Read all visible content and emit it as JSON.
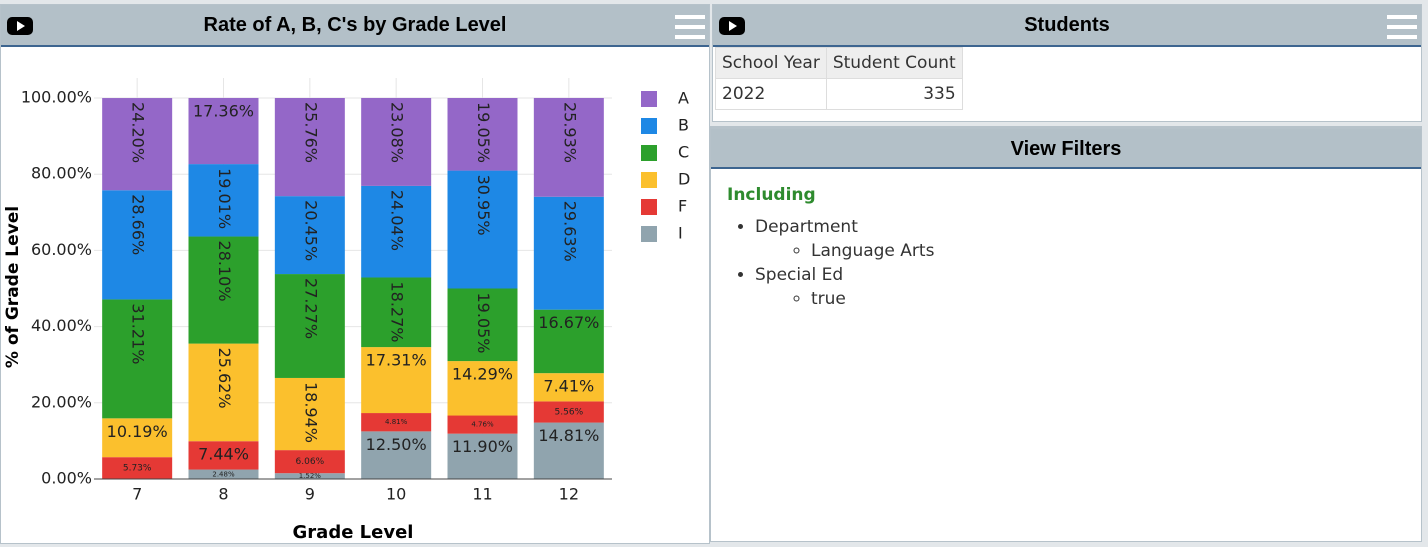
{
  "chart_data": {
    "type": "stacked-bar",
    "title": "Rate of A, B, C's by Grade Level",
    "x_label": "Grade Level",
    "y_label": "% of Grade Level",
    "categories": [
      "7",
      "8",
      "9",
      "10",
      "11",
      "12"
    ],
    "series": [
      {
        "name": "A",
        "color": "#9467c8",
        "values": [
          24.2,
          17.36,
          25.76,
          23.08,
          19.05,
          25.93
        ],
        "value_labels": [
          "24.20%",
          "17.36%",
          "25.76%",
          "23.08%",
          "19.05%",
          "25.93%"
        ]
      },
      {
        "name": "B",
        "color": "#1e88e5",
        "values": [
          28.66,
          19.01,
          20.45,
          24.04,
          30.95,
          29.63
        ],
        "value_labels": [
          "28.66%",
          "19.01%",
          "20.45%",
          "24.04%",
          "30.95%",
          "29.63%"
        ]
      },
      {
        "name": "C",
        "color": "#2ca02c",
        "values": [
          31.21,
          28.1,
          27.27,
          18.27,
          19.05,
          16.67
        ],
        "value_labels": [
          "31.21%",
          "28.10%",
          "27.27%",
          "18.27%",
          "19.05%",
          "16.67%"
        ]
      },
      {
        "name": "D",
        "color": "#fbc02d",
        "values": [
          10.19,
          25.62,
          18.94,
          17.31,
          14.29,
          7.41
        ],
        "value_labels": [
          "10.19%",
          "25.62%",
          "18.94%",
          "17.31%",
          "14.29%",
          "7.41%"
        ]
      },
      {
        "name": "F",
        "color": "#e53935",
        "values": [
          5.73,
          7.44,
          6.06,
          4.81,
          4.76,
          5.56
        ],
        "value_labels": [
          "5.73%",
          "7.44%",
          "6.06%",
          "4.81%",
          "4.76%",
          "5.56%"
        ]
      },
      {
        "name": "I",
        "color": "#90a4ae",
        "values": [
          0,
          2.48,
          1.52,
          12.5,
          11.9,
          14.81
        ],
        "value_labels": [
          null,
          "2.48%",
          "1.52%",
          "12.50%",
          "11.90%",
          "14.81%"
        ]
      }
    ],
    "ylim": [
      0,
      100
    ],
    "yticks": [
      {
        "value": 0,
        "label": "0.00%"
      },
      {
        "value": 20,
        "label": "20.00%"
      },
      {
        "value": 40,
        "label": "40.00%"
      },
      {
        "value": 60,
        "label": "60.00%"
      },
      {
        "value": 80,
        "label": "80.00%"
      },
      {
        "value": 100,
        "label": "100.00%"
      }
    ],
    "grid": true,
    "legend": "right"
  },
  "students": {
    "title": "Students",
    "table": {
      "columns": [
        "School Year",
        "Student Count"
      ],
      "rows": [
        [
          "2022",
          "335"
        ]
      ]
    }
  },
  "filters": {
    "title": "View Filters",
    "heading": "Including",
    "items": [
      {
        "label": "Department",
        "children": [
          "Language Arts"
        ]
      },
      {
        "label": "Special Ed",
        "children": [
          "true"
        ]
      }
    ]
  }
}
